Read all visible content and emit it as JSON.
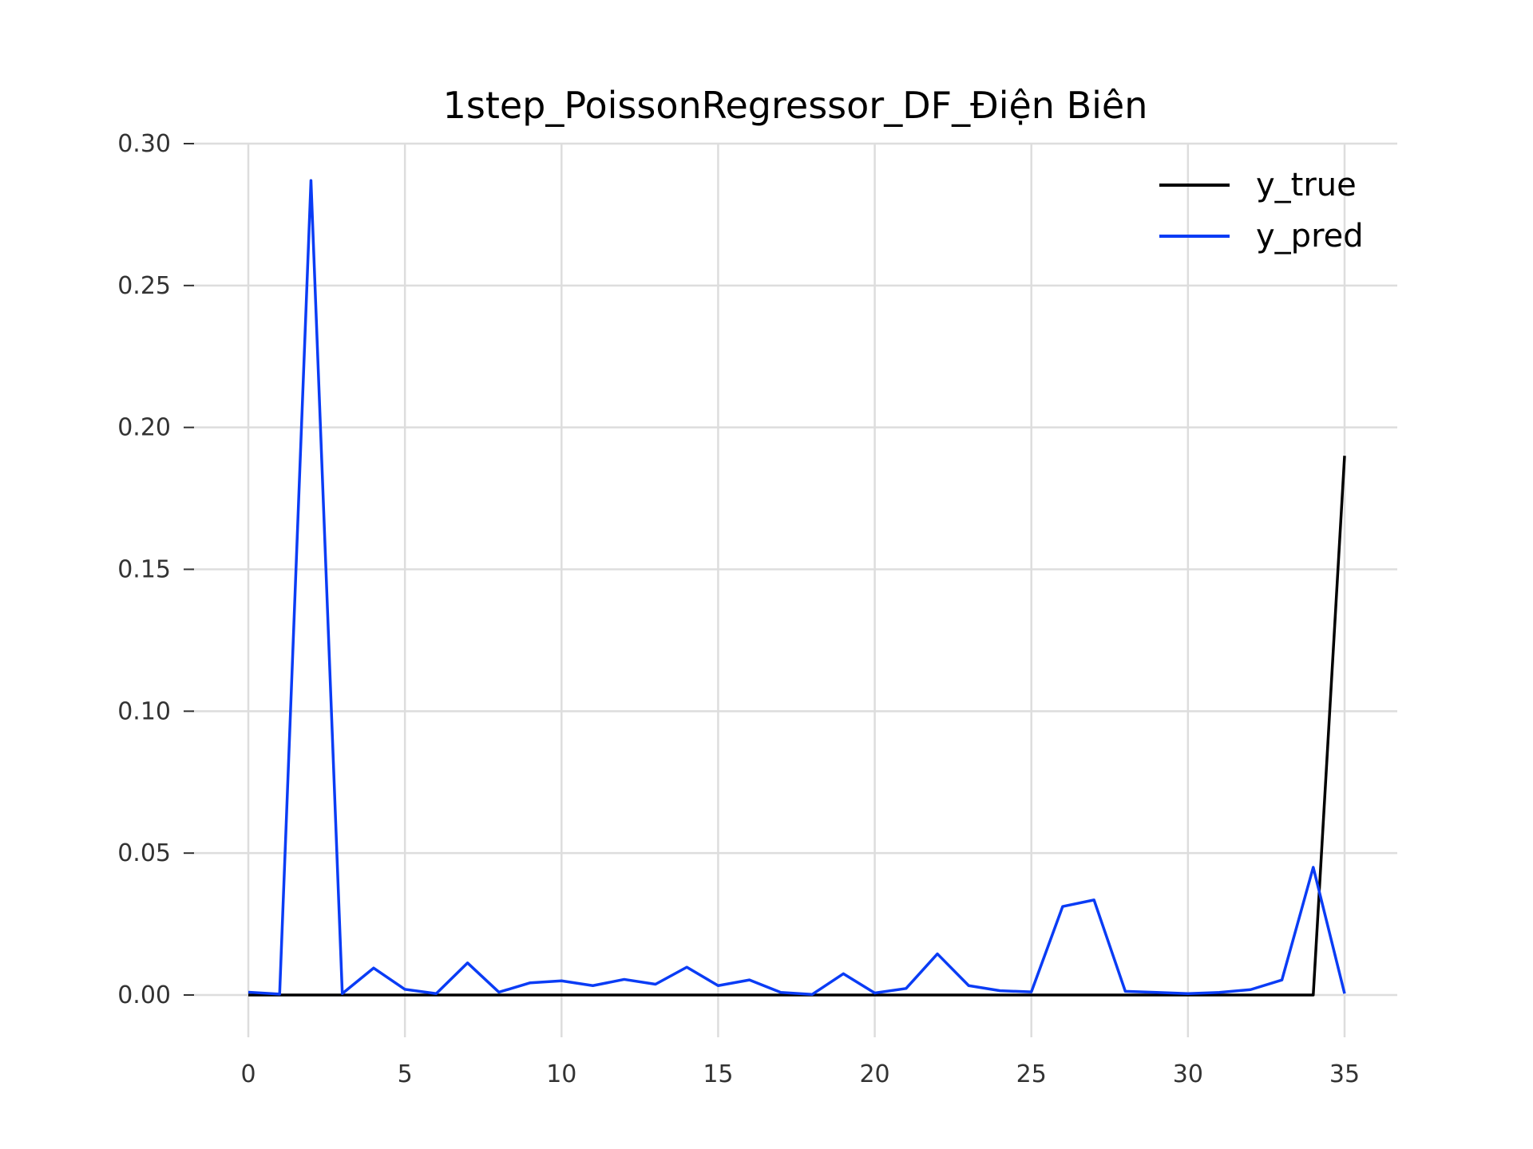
{
  "chart_data": {
    "type": "line",
    "title": "1step_PoissonRegressor_DF_Điện Biên",
    "xlabel": "",
    "ylabel": "",
    "xlim": [
      0,
      35
    ],
    "ylim": [
      0,
      0.3
    ],
    "x_ticks": [
      0,
      5,
      10,
      15,
      20,
      25,
      30,
      35
    ],
    "x_tick_labels": [
      "0",
      "5",
      "10",
      "15",
      "20",
      "25",
      "30",
      "35"
    ],
    "y_ticks": [
      0,
      0.05,
      0.1,
      0.15,
      0.2,
      0.25,
      0.3
    ],
    "y_tick_labels": [
      "0.00",
      "0.05",
      "0.10",
      "0.15",
      "0.20",
      "0.25",
      "0.30"
    ],
    "grid": true,
    "legend_position": "top-right",
    "x": [
      0,
      1,
      2,
      3,
      4,
      5,
      6,
      7,
      8,
      9,
      10,
      11,
      12,
      13,
      14,
      15,
      16,
      17,
      18,
      19,
      20,
      21,
      22,
      23,
      24,
      25,
      26,
      27,
      28,
      29,
      30,
      31,
      32,
      33,
      34,
      35
    ],
    "series": [
      {
        "name": "y_true",
        "color": "#000000",
        "values": [
          0,
          0,
          0,
          0,
          0,
          0,
          0,
          0,
          0,
          0,
          0,
          0,
          0,
          0,
          0,
          0,
          0,
          0,
          0,
          0,
          0,
          0,
          0,
          0,
          0,
          0,
          0,
          0,
          0,
          0,
          0,
          0,
          0,
          0,
          0,
          0.19
        ]
      },
      {
        "name": "y_pred",
        "color": "#0a3cf5",
        "values": [
          0.001,
          0.0003,
          0.287,
          0.0005,
          0.0095,
          0.002,
          0.0005,
          0.0113,
          0.001,
          0.0043,
          0.005,
          0.0033,
          0.0055,
          0.0038,
          0.0098,
          0.0033,
          0.0053,
          0.0009,
          0.0002,
          0.0075,
          0.0007,
          0.0023,
          0.0145,
          0.0033,
          0.0015,
          0.0011,
          0.0312,
          0.0335,
          0.0013,
          0.0009,
          0.0005,
          0.0009,
          0.0019,
          0.0053,
          0.045,
          0.0005
        ]
      }
    ]
  }
}
